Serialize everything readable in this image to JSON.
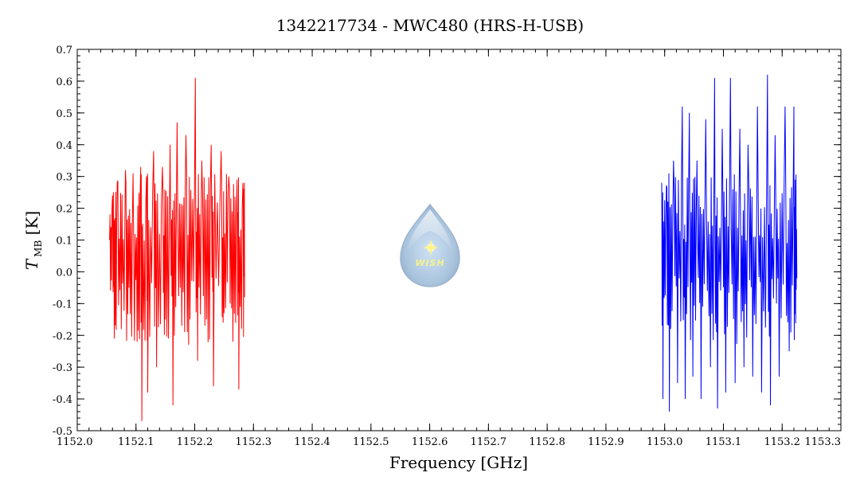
{
  "chart_data": {
    "type": "line",
    "title": "1342217734 - MWC480 (HRS-H-USB)",
    "xlabel": "Frequency [GHz]",
    "ylabel": {
      "main": "T",
      "sub": "MB",
      "unit": " [K]"
    },
    "xlim": [
      1152.0,
      1153.3
    ],
    "ylim": [
      -0.5,
      0.7
    ],
    "xticks": [
      1152.0,
      1152.1,
      1152.2,
      1152.3,
      1152.4,
      1152.5,
      1152.6,
      1152.7,
      1152.8,
      1152.9,
      1153.0,
      1153.1,
      1153.2,
      1153.3
    ],
    "xtick_labels": [
      "1152.0",
      "1152.1",
      "1152.2",
      "1152.3",
      "1152.4",
      "1152.5",
      "1152.6",
      "1152.7",
      "1152.8",
      "1152.9",
      "1153.0",
      "1153.1",
      "1153.2",
      "1153.3"
    ],
    "yticks": [
      -0.5,
      -0.4,
      -0.3,
      -0.2,
      -0.1,
      0.0,
      0.1,
      0.2,
      0.3,
      0.4,
      0.5,
      0.6,
      0.7
    ],
    "ytick_labels": [
      "-0.5",
      "-0.4",
      "-0.3",
      "-0.2",
      "-0.1",
      "0.0",
      "0.1",
      "0.2",
      "0.3",
      "0.4",
      "0.5",
      "0.6",
      "0.7"
    ],
    "grid": false,
    "series": [
      {
        "color": "#ff0000",
        "x_range": [
          1152.055,
          1152.285
        ],
        "anchors": [
          [
            1152.055,
            0.1
          ],
          [
            1152.06,
            0.24
          ],
          [
            1152.063,
            -0.21
          ],
          [
            1152.068,
            0.28
          ],
          [
            1152.075,
            -0.18
          ],
          [
            1152.082,
            0.32
          ],
          [
            1152.088,
            -0.05
          ],
          [
            1152.095,
            0.31
          ],
          [
            1152.102,
            -0.22
          ],
          [
            1152.108,
            0.33
          ],
          [
            1152.11,
            -0.47
          ],
          [
            1152.118,
            0.3
          ],
          [
            1152.12,
            -0.38
          ],
          [
            1152.13,
            0.38
          ],
          [
            1152.135,
            -0.3
          ],
          [
            1152.145,
            0.33
          ],
          [
            1152.15,
            -0.15
          ],
          [
            1152.158,
            0.4
          ],
          [
            1152.163,
            -0.42
          ],
          [
            1152.17,
            0.47
          ],
          [
            1152.178,
            -0.17
          ],
          [
            1152.185,
            0.43
          ],
          [
            1152.192,
            -0.15
          ],
          [
            1152.201,
            0.61
          ],
          [
            1152.205,
            -0.28
          ],
          [
            1152.212,
            0.35
          ],
          [
            1152.22,
            -0.15
          ],
          [
            1152.228,
            0.4
          ],
          [
            1152.232,
            -0.36
          ],
          [
            1152.245,
            0.38
          ],
          [
            1152.25,
            -0.13
          ],
          [
            1152.258,
            0.3
          ],
          [
            1152.265,
            -0.22
          ],
          [
            1152.272,
            0.29
          ],
          [
            1152.275,
            -0.37
          ],
          [
            1152.282,
            0.28
          ],
          [
            1152.285,
            -0.08
          ]
        ]
      },
      {
        "color": "#0000ff",
        "x_range": [
          1152.995,
          1153.225
        ],
        "anchors": [
          [
            1152.995,
            0.28
          ],
          [
            1152.997,
            -0.4
          ],
          [
            1153.003,
            0.27
          ],
          [
            1153.008,
            -0.44
          ],
          [
            1153.015,
            0.35
          ],
          [
            1153.022,
            -0.35
          ],
          [
            1153.03,
            0.52
          ],
          [
            1153.035,
            -0.4
          ],
          [
            1153.042,
            0.5
          ],
          [
            1153.048,
            -0.33
          ],
          [
            1153.055,
            0.35
          ],
          [
            1153.062,
            -0.4
          ],
          [
            1153.07,
            0.48
          ],
          [
            1153.078,
            -0.3
          ],
          [
            1153.085,
            0.61
          ],
          [
            1153.09,
            -0.43
          ],
          [
            1153.098,
            0.45
          ],
          [
            1153.104,
            -0.38
          ],
          [
            1153.112,
            0.61
          ],
          [
            1153.12,
            -0.35
          ],
          [
            1153.128,
            0.45
          ],
          [
            1153.135,
            -0.3
          ],
          [
            1153.142,
            0.4
          ],
          [
            1153.15,
            -0.33
          ],
          [
            1153.158,
            0.52
          ],
          [
            1153.165,
            -0.38
          ],
          [
            1153.175,
            0.62
          ],
          [
            1153.18,
            -0.42
          ],
          [
            1153.188,
            0.43
          ],
          [
            1153.195,
            -0.33
          ],
          [
            1153.205,
            0.52
          ],
          [
            1153.212,
            -0.25
          ],
          [
            1153.22,
            0.52
          ],
          [
            1153.222,
            0.2
          ],
          [
            1153.225,
            -0.02
          ]
        ]
      }
    ]
  },
  "watermark": {
    "text": "WISH"
  }
}
